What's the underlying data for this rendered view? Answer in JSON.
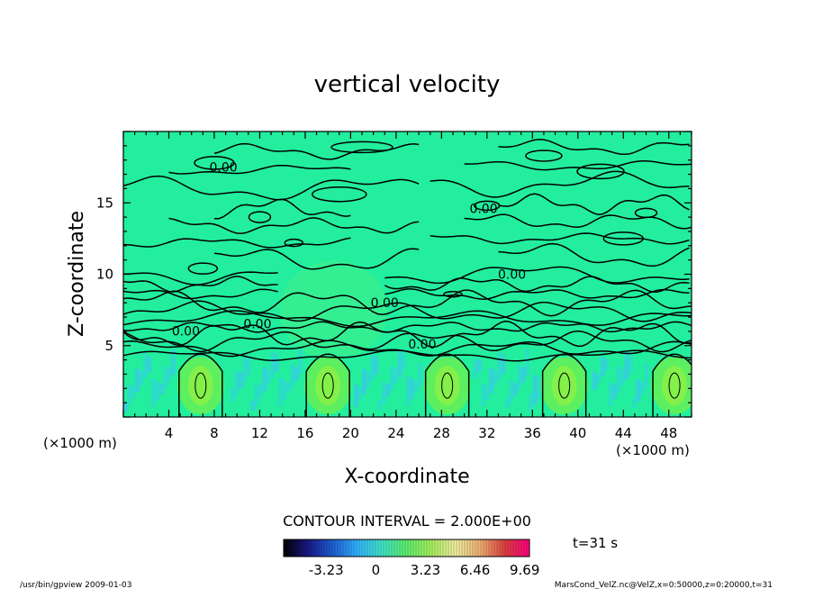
{
  "chart_data": {
    "type": "heatmap",
    "title": "vertical velocity",
    "xlabel": "X-coordinate",
    "ylabel": "Z-coordinate",
    "x_unit": "(×1000 m)",
    "y_unit": "(×1000 m)",
    "x_ticks": [
      4,
      8,
      12,
      16,
      20,
      24,
      28,
      32,
      36,
      40,
      44,
      48
    ],
    "y_ticks": [
      5,
      10,
      15
    ],
    "xlim": [
      0,
      50
    ],
    "ylim": [
      0,
      20
    ],
    "contour_interval_text": "CONTOUR INTERVAL = 2.000E+00",
    "contour_labels": [
      {
        "text": "0.00",
        "x": 8.8,
        "y": 17.2
      },
      {
        "text": "0.00",
        "x": 31.7,
        "y": 14.3
      },
      {
        "text": "0.00",
        "x": 34.2,
        "y": 9.7
      },
      {
        "text": "0.00",
        "x": 23.0,
        "y": 7.7
      },
      {
        "text": "0.00",
        "x": 11.8,
        "y": 6.2
      },
      {
        "text": "0.00",
        "x": 5.5,
        "y": 5.7
      },
      {
        "text": "0.00",
        "x": 26.3,
        "y": 4.8
      }
    ],
    "updraft_cores": [
      6.8,
      18.0,
      28.5,
      38.8,
      48.5
    ],
    "colorbar": {
      "ticks": [
        "-3.23",
        "0",
        "3.23",
        "6.46",
        "9.69"
      ],
      "range": [
        -6.0,
        10.0
      ],
      "colors": [
        "#000000",
        "#1a1a8a",
        "#1f5fd6",
        "#33b4ff",
        "#3fe6c8",
        "#5ef070",
        "#a8f060",
        "#f0f0a0",
        "#f0b070",
        "#e04040",
        "#ff0080"
      ]
    },
    "time_label": "t=31 s",
    "footer_left": "/usr/bin/gpview  2009-01-03",
    "footer_right": "MarsCond_VelZ.nc@VelZ,x=0:50000,z=0:20000,t=31"
  }
}
